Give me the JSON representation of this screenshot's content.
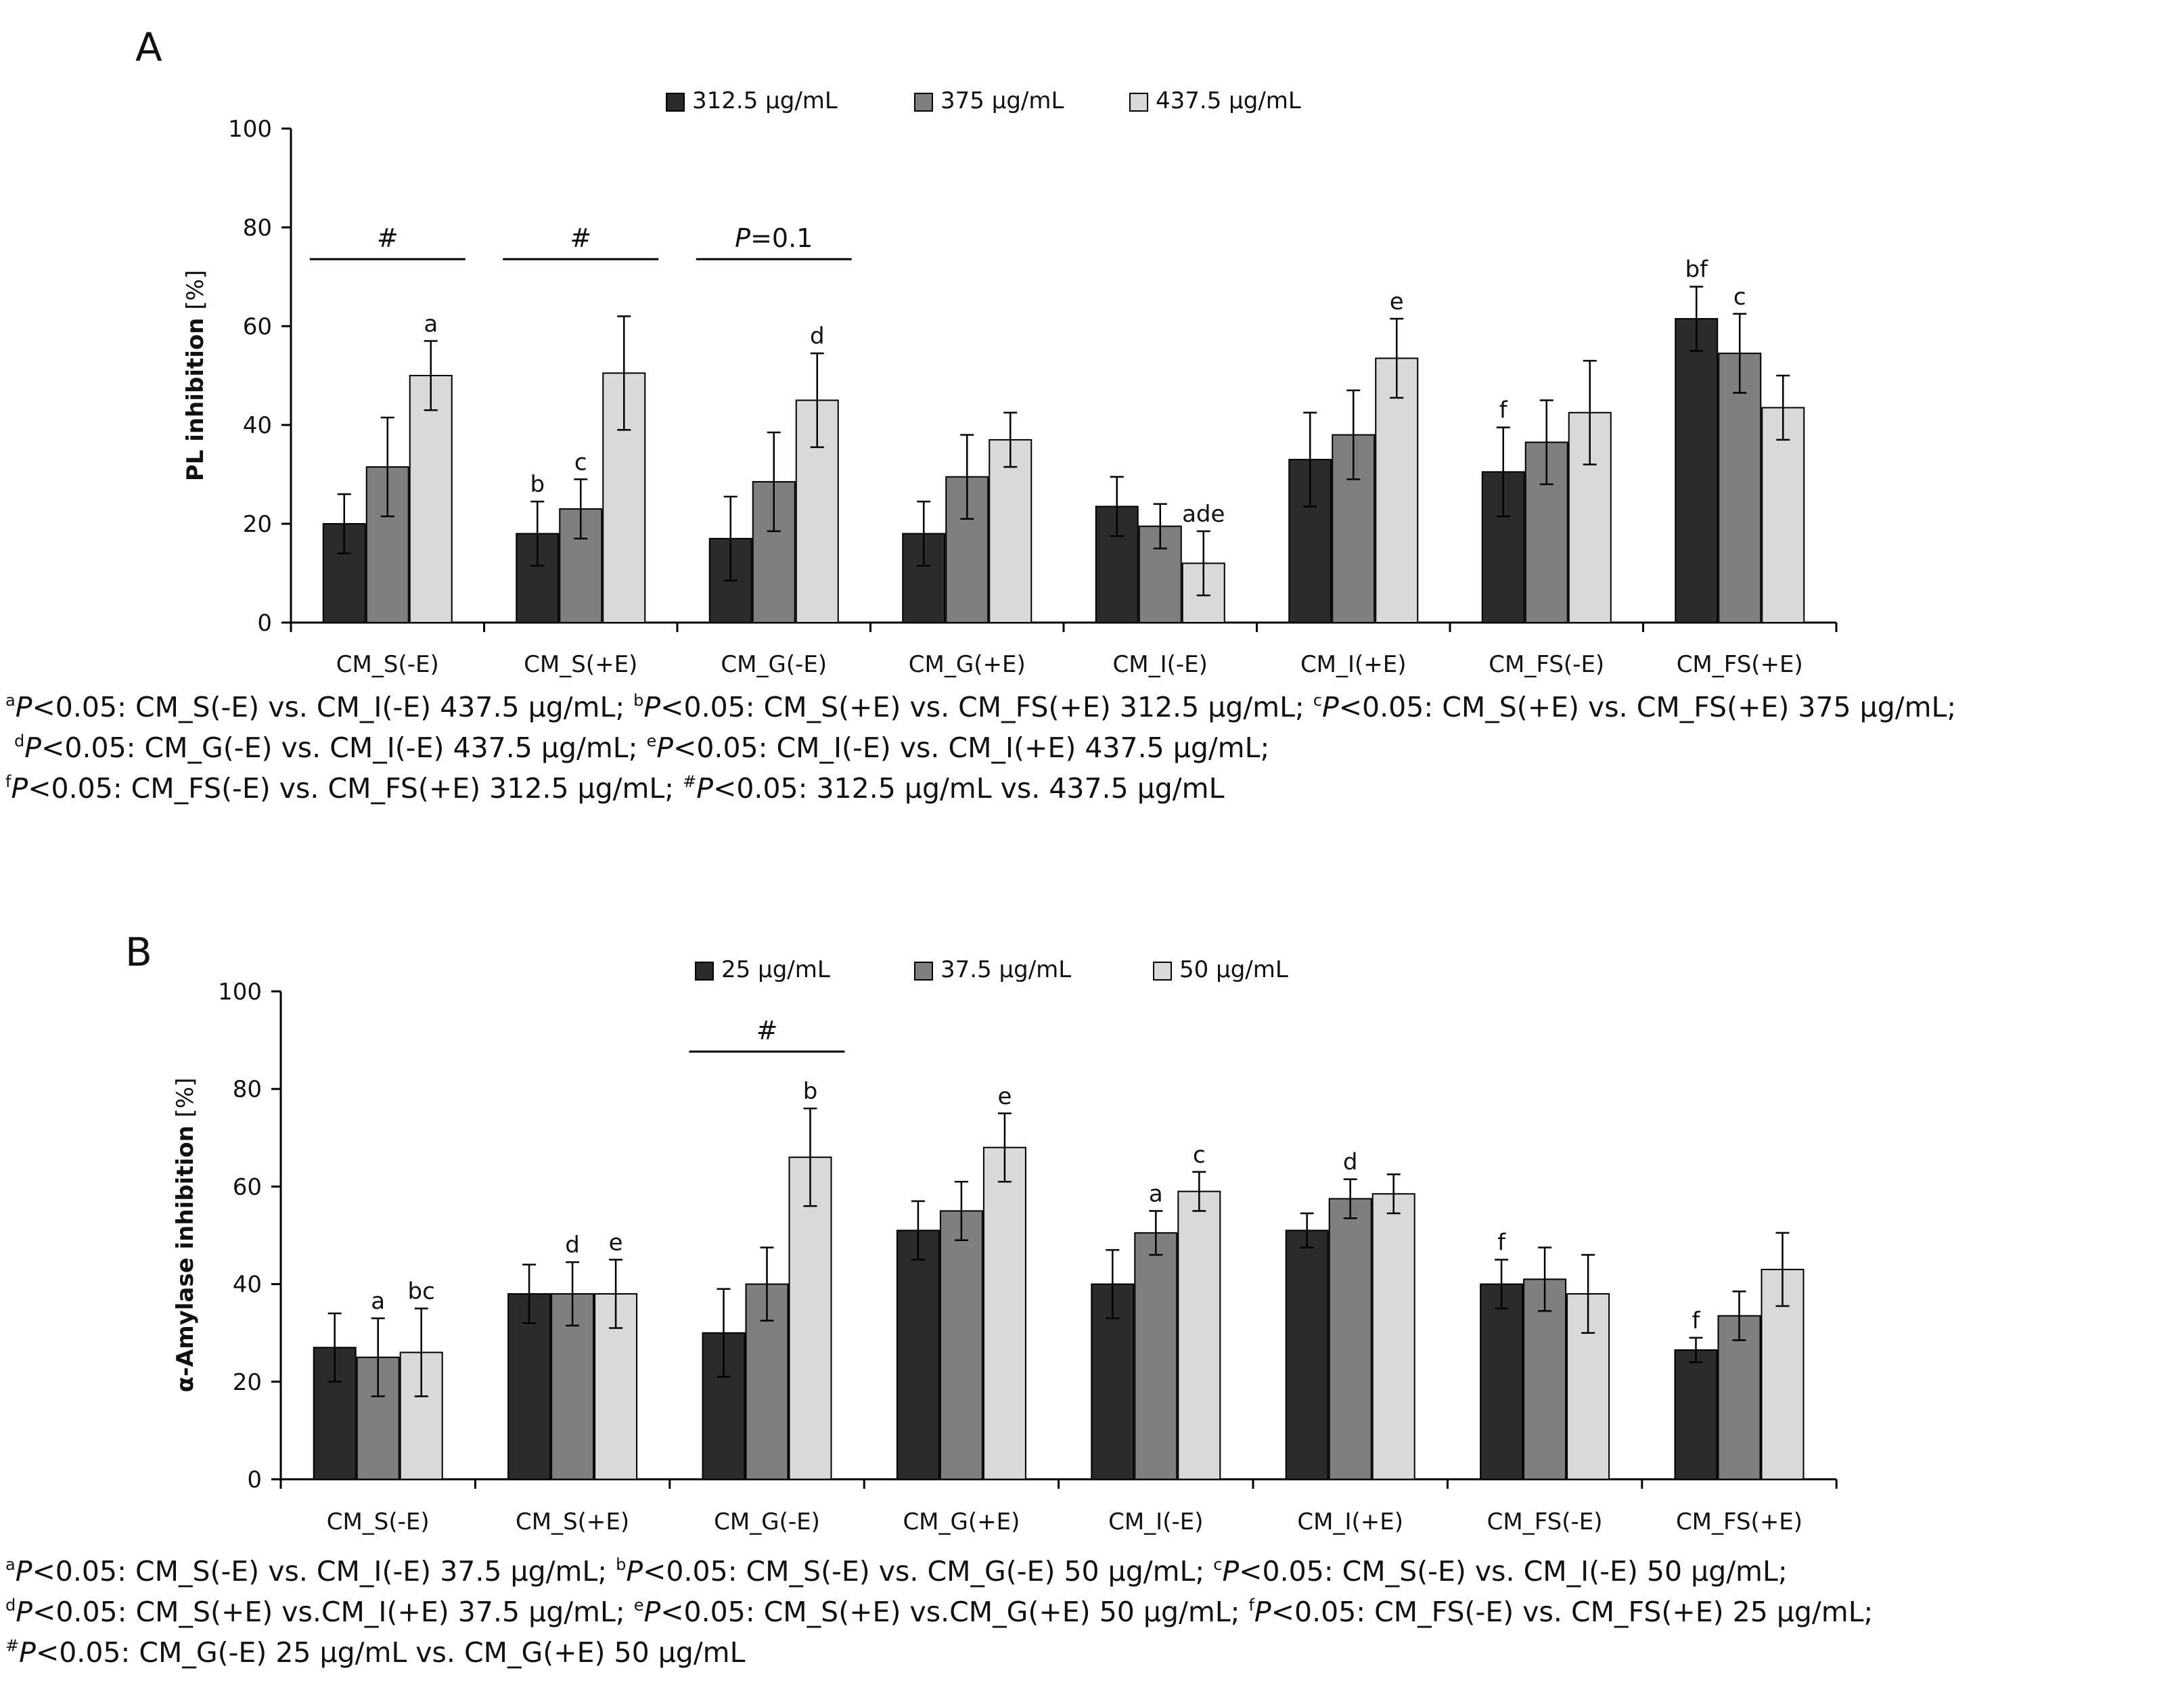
{
  "colors": {
    "s1": "#2b2b2b",
    "s2": "#7f7f7f",
    "s3": "#d9d9d9",
    "stroke": "#000000"
  },
  "chart_data": [
    {
      "type": "bar",
      "panel": "A",
      "ylabel": "PL inhibition",
      "ylabel_unit": "[%]",
      "xlabel": "",
      "ylim": [
        0,
        100
      ],
      "yticks": [
        "0",
        "20",
        "40",
        "60",
        "80",
        "100"
      ],
      "categories": [
        "CM_S(-E)",
        "CM_S(+E)",
        "CM_G(-E)",
        "CM_G(+E)",
        "CM_I(-E)",
        "CM_I(+E)",
        "CM_FS(-E)",
        "CM_FS(+E)"
      ],
      "series": [
        {
          "name": "312.5 µg/mL",
          "values": [
            20,
            18,
            17,
            18,
            23.5,
            33,
            30.5,
            61.5
          ],
          "errors": [
            6,
            6.5,
            8.5,
            6.5,
            6,
            9.5,
            9,
            6.5
          ]
        },
        {
          "name": "375 µg/mL",
          "values": [
            31.5,
            23,
            28.5,
            29.5,
            19.5,
            38,
            36.5,
            54.5
          ],
          "errors": [
            10,
            6,
            10,
            8.5,
            4.5,
            9,
            8.5,
            8
          ]
        },
        {
          "name": "437.5 µg/mL",
          "values": [
            50,
            50.5,
            45,
            37,
            12,
            53.5,
            42.5,
            43.5
          ],
          "errors": [
            7,
            11.5,
            9.5,
            5.5,
            6.5,
            8,
            10.5,
            6.5
          ]
        }
      ],
      "significance": [
        {
          "cat": 0,
          "series": 2,
          "label": "a"
        },
        {
          "cat": 1,
          "series": 0,
          "label": "b"
        },
        {
          "cat": 1,
          "series": 1,
          "label": "c"
        },
        {
          "cat": 2,
          "series": 2,
          "label": "d"
        },
        {
          "cat": 4,
          "series": 2,
          "label": "ade"
        },
        {
          "cat": 5,
          "series": 2,
          "label": "e"
        },
        {
          "cat": 6,
          "series": 0,
          "label": "f"
        },
        {
          "cat": 7,
          "series": 0,
          "label": "bf"
        },
        {
          "cat": 7,
          "series": 1,
          "label": "c"
        }
      ],
      "brackets": [
        {
          "cat": 0,
          "label": "#"
        },
        {
          "cat": 1,
          "label": "#"
        },
        {
          "cat": 2,
          "label_italic": "P",
          "label": "=0.1"
        }
      ],
      "footnotes": [
        [
          {
            "sup": "a"
          },
          {
            "i": "P"
          },
          {
            "t": "<0.05: CM_S(-E) vs. CM_I(-E) 437.5 µg/mL; "
          },
          {
            "sup": "b"
          },
          {
            "i": "P"
          },
          {
            "t": "<0.05: CM_S(+E) vs. CM_FS(+E) 312.5 µg/mL; "
          },
          {
            "sup": "c"
          },
          {
            "i": "P"
          },
          {
            "t": "<0.05: CM_S(+E) vs. CM_FS(+E) 375 µg/mL;"
          }
        ],
        [
          {
            "t": " "
          },
          {
            "sup": "d"
          },
          {
            "i": "P"
          },
          {
            "t": "<0.05: CM_G(-E) vs. CM_I(-E) 437.5 µg/mL; "
          },
          {
            "sup": "e"
          },
          {
            "i": "P"
          },
          {
            "t": "<0.05: CM_I(-E) vs. CM_I(+E) 437.5 µg/mL;"
          }
        ],
        [
          {
            "sup": "f"
          },
          {
            "i": "P"
          },
          {
            "t": "<0.05: CM_FS(-E) vs. CM_FS(+E) 312.5 µg/mL; "
          },
          {
            "sup": "#"
          },
          {
            "i": "P"
          },
          {
            "t": "<0.05: 312.5 µg/mL vs. 437.5 µg/mL"
          }
        ]
      ]
    },
    {
      "type": "bar",
      "panel": "B",
      "ylabel": "α-Amylase inhibition",
      "ylabel_unit": "[%]",
      "xlabel": "",
      "ylim": [
        0,
        100
      ],
      "yticks": [
        "0",
        "20",
        "40",
        "60",
        "80",
        "100"
      ],
      "categories": [
        "CM_S(-E)",
        "CM_S(+E)",
        "CM_G(-E)",
        "CM_G(+E)",
        "CM_I(-E)",
        "CM_I(+E)",
        "CM_FS(-E)",
        "CM_FS(+E)"
      ],
      "series": [
        {
          "name": "25 µg/mL",
          "values": [
            27,
            38,
            30,
            51,
            40,
            51,
            40,
            26.5
          ],
          "errors": [
            7,
            6,
            9,
            6,
            7,
            3.5,
            5,
            2.5
          ]
        },
        {
          "name": "37.5 µg/mL",
          "values": [
            25,
            38,
            40,
            55,
            50.5,
            57.5,
            41,
            33.5
          ],
          "errors": [
            8,
            6.5,
            7.5,
            6,
            4.5,
            4,
            6.5,
            5
          ]
        },
        {
          "name": "50 µg/mL",
          "values": [
            26,
            38,
            66,
            68,
            59,
            58.5,
            38,
            43
          ],
          "errors": [
            9,
            7,
            10,
            7,
            4,
            4,
            8,
            7.5
          ]
        }
      ],
      "significance": [
        {
          "cat": 0,
          "series": 1,
          "label": "a"
        },
        {
          "cat": 0,
          "series": 2,
          "label": "bc"
        },
        {
          "cat": 1,
          "series": 1,
          "label": "d"
        },
        {
          "cat": 1,
          "series": 2,
          "label": "e"
        },
        {
          "cat": 2,
          "series": 2,
          "label": "b"
        },
        {
          "cat": 3,
          "series": 2,
          "label": "e"
        },
        {
          "cat": 4,
          "series": 1,
          "label": "a"
        },
        {
          "cat": 4,
          "series": 2,
          "label": "c"
        },
        {
          "cat": 5,
          "series": 1,
          "label": "d"
        },
        {
          "cat": 6,
          "series": 0,
          "label": "f"
        },
        {
          "cat": 7,
          "series": 0,
          "label": "f"
        }
      ],
      "brackets": [
        {
          "cat": 2,
          "label": "#"
        }
      ],
      "footnotes": [
        [
          {
            "sup": "a"
          },
          {
            "i": "P"
          },
          {
            "t": "<0.05: CM_S(-E) vs. CM_I(-E) 37.5 µg/mL; "
          },
          {
            "sup": "b"
          },
          {
            "i": "P"
          },
          {
            "t": "<0.05: CM_S(-E) vs. CM_G(-E) 50 µg/mL; "
          },
          {
            "sup": "c"
          },
          {
            "i": "P"
          },
          {
            "t": "<0.05: CM_S(-E) vs. CM_I(-E) 50 µg/mL;"
          }
        ],
        [
          {
            "sup": "d"
          },
          {
            "i": "P"
          },
          {
            "t": "<0.05: CM_S(+E) vs.CM_I(+E) 37.5 µg/mL; "
          },
          {
            "sup": "e"
          },
          {
            "i": "P"
          },
          {
            "t": "<0.05: CM_S(+E) vs.CM_G(+E) 50 µg/mL; "
          },
          {
            "sup": "f"
          },
          {
            "i": "P"
          },
          {
            "t": "<0.05: CM_FS(-E) vs. CM_FS(+E) 25 µg/mL;"
          }
        ],
        [
          {
            "sup": "#"
          },
          {
            "i": "P"
          },
          {
            "t": "<0.05: CM_G(-E) 25 µg/mL vs. CM_G(+E) 50 µg/mL"
          }
        ]
      ]
    }
  ]
}
